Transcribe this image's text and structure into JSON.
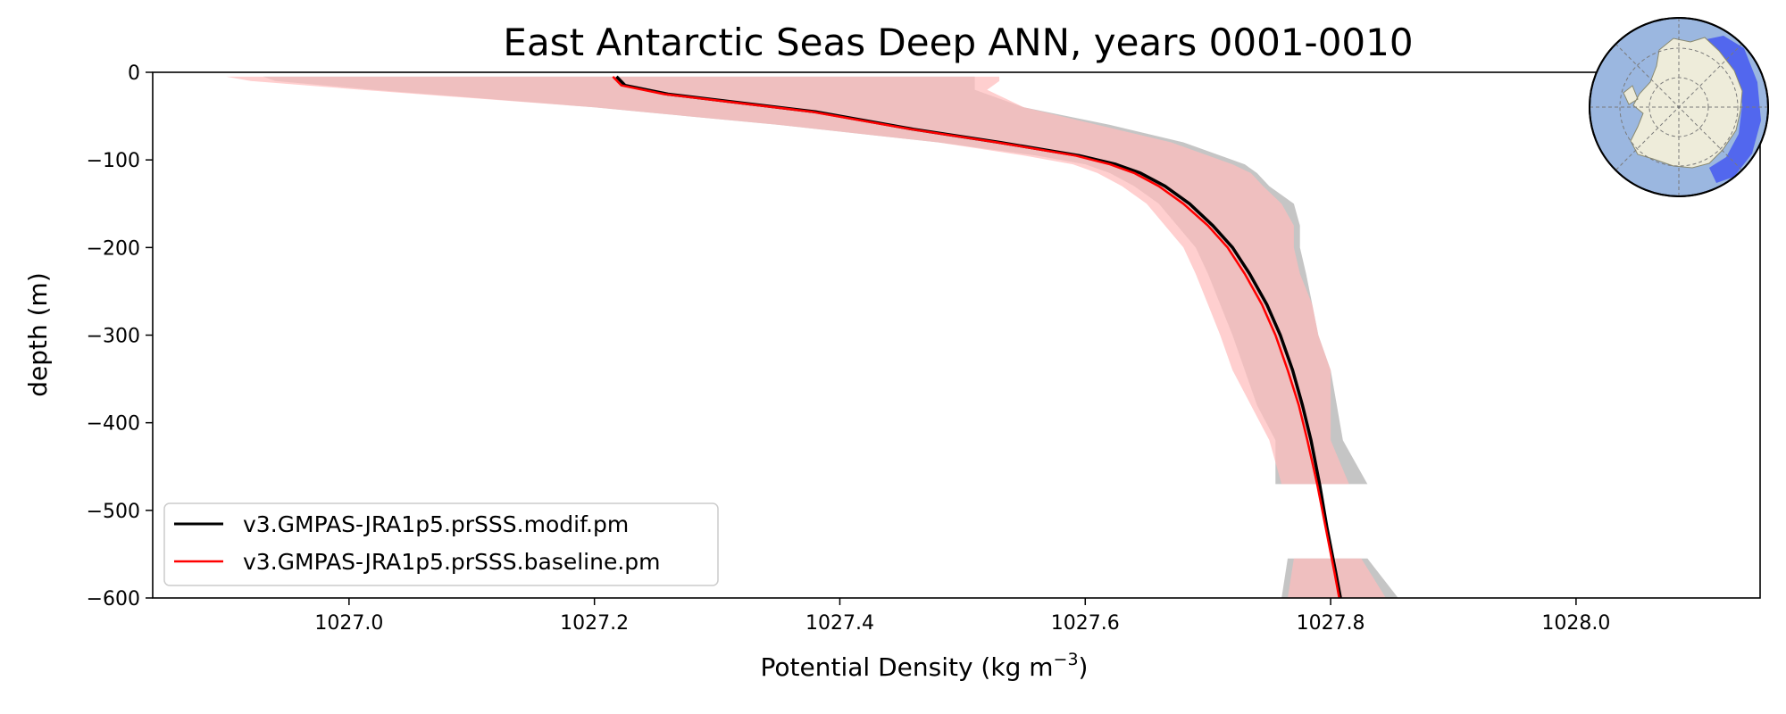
{
  "chart_data": {
    "type": "line",
    "title": "East Antarctic Seas Deep ANN, years 0001-0010",
    "xlabel": "Potential Density (kg m",
    "xlabel_exponent": "−3",
    "xlabel_suffix": ")",
    "ylabel": "depth (m)",
    "xlim": [
      1026.84,
      1028.15
    ],
    "ylim": [
      -600,
      0
    ],
    "x_ticks": [
      1027.0,
      1027.2,
      1027.4,
      1027.6,
      1027.8,
      1028.0
    ],
    "x_tick_labels": [
      "1027.0",
      "1027.2",
      "1027.4",
      "1027.6",
      "1027.8",
      "1028.0"
    ],
    "y_ticks": [
      0,
      -100,
      -200,
      -300,
      -400,
      -500,
      -600
    ],
    "y_tick_labels": [
      "0",
      "−100",
      "−200",
      "−300",
      "−400",
      "−500",
      "−600"
    ],
    "grid": false,
    "legend_position": "lower-left",
    "series": [
      {
        "name": "v3.GMPAS-JRA1p5.prSSS.modif.pm",
        "color": "#000000",
        "depth": [
          -5,
          -15,
          -25,
          -45,
          -65,
          -80,
          -95,
          -105,
          -115,
          -130,
          -150,
          -175,
          -200,
          -230,
          -265,
          -300,
          -340,
          -380,
          -420,
          -470,
          -520,
          -570,
          -600
        ],
        "values": [
          1027.218,
          1027.225,
          1027.26,
          1027.38,
          1027.46,
          1027.53,
          1027.595,
          1027.625,
          1027.645,
          1027.665,
          1027.685,
          1027.704,
          1027.72,
          1027.734,
          1027.748,
          1027.759,
          1027.769,
          1027.777,
          1027.784,
          1027.791,
          1027.797,
          1027.804,
          1027.808
        ],
        "band_upper": [
          1027.51,
          1027.51,
          1027.51,
          1027.55,
          1027.62,
          1027.68,
          1027.71,
          1027.73,
          1027.74,
          1027.75,
          1027.77,
          1027.775,
          1027.775,
          1027.78,
          1027.785,
          1027.79,
          1027.8,
          1027.805,
          1027.81,
          1027.83
        ],
        "band_lower": [
          1026.93,
          1026.94,
          1027.02,
          1027.2,
          1027.35,
          1027.48,
          1027.56,
          1027.6,
          1027.62,
          1027.64,
          1027.66,
          1027.675,
          1027.69,
          1027.7,
          1027.71,
          1027.72,
          1027.73,
          1027.74,
          1027.755,
          1027.755
        ],
        "band_depth": [
          -5,
          -10,
          -20,
          -40,
          -60,
          -80,
          -95,
          -105,
          -115,
          -130,
          -150,
          -175,
          -200,
          -230,
          -265,
          -300,
          -340,
          -380,
          -420,
          -470
        ],
        "band2_depth": [
          -555,
          -600
        ],
        "band2_upper": [
          1027.83,
          1027.855
        ],
        "band2_lower": [
          1027.765,
          1027.76
        ],
        "band_color": "#c2c2c2"
      },
      {
        "name": "v3.GMPAS-JRA1p5.prSSS.baseline.pm",
        "color": "#ff0000",
        "depth": [
          -5,
          -15,
          -25,
          -45,
          -65,
          -80,
          -95,
          -105,
          -115,
          -130,
          -150,
          -175,
          -200,
          -230,
          -265,
          -300,
          -340,
          -380,
          -420,
          -470,
          -520,
          -570,
          -600
        ],
        "values": [
          1027.215,
          1027.222,
          1027.257,
          1027.377,
          1027.458,
          1027.528,
          1027.592,
          1027.62,
          1027.64,
          1027.66,
          1027.68,
          1027.7,
          1027.716,
          1027.73,
          1027.744,
          1027.755,
          1027.765,
          1027.774,
          1027.781,
          1027.789,
          1027.796,
          1027.803,
          1027.807
        ],
        "band_upper": [
          1027.53,
          1027.53,
          1027.52,
          1027.55,
          1027.61,
          1027.67,
          1027.7,
          1027.72,
          1027.735,
          1027.745,
          1027.76,
          1027.77,
          1027.77,
          1027.775,
          1027.785,
          1027.79,
          1027.8,
          1027.8,
          1027.8,
          1027.815
        ],
        "band_lower": [
          1026.9,
          1026.92,
          1027.01,
          1027.2,
          1027.35,
          1027.48,
          1027.55,
          1027.59,
          1027.61,
          1027.63,
          1027.65,
          1027.665,
          1027.68,
          1027.69,
          1027.7,
          1027.71,
          1027.72,
          1027.735,
          1027.75,
          1027.76
        ],
        "band_depth": [
          -5,
          -10,
          -20,
          -40,
          -60,
          -80,
          -95,
          -105,
          -115,
          -130,
          -150,
          -175,
          -200,
          -230,
          -265,
          -300,
          -340,
          -380,
          -420,
          -470
        ],
        "band2_depth": [
          -555,
          -600
        ],
        "band2_upper": [
          1027.825,
          1027.845
        ],
        "band2_lower": [
          1027.77,
          1027.765
        ],
        "band_color": "#ffbcbc"
      }
    ],
    "inset_map": "antarctic-region-map"
  }
}
